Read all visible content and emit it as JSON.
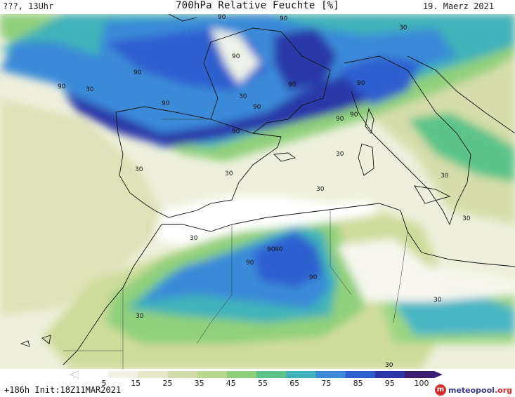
{
  "header": {
    "left": "???, 13Uhr",
    "title": "700hPa Relative Feuchte [%]",
    "date": "19. Maerz 2021"
  },
  "footer": {
    "init": "+186h  Init:18Z11MAR2021",
    "logo": "meteopool.org"
  },
  "colorbar": {
    "ticks": [
      "5",
      "15",
      "25",
      "35",
      "45",
      "55",
      "65",
      "75",
      "85",
      "95",
      "100"
    ],
    "colors": [
      "#ffffff",
      "#f1f1e6",
      "#e6e7c8",
      "#d2dcaa",
      "#b9d98e",
      "#8fd07c",
      "#5cc489",
      "#3fb2b9",
      "#3b8ad8",
      "#2d5fcf",
      "#2b37a8",
      "#3a1e72"
    ]
  },
  "labels": {
    "l90_1": "90",
    "l90_2": "90",
    "l90_3": "90",
    "l90_4": "90",
    "l90_5": "90",
    "l90_6": "90",
    "l90_7": "90",
    "l90_8": "90",
    "l90_9": "90",
    "l90_10": "90",
    "l90_11": "90",
    "l90_12": "90",
    "l90_13": "90",
    "l90_14": "90",
    "l90_15": "90",
    "l90_16": "90",
    "l30_1": "30",
    "l30_2": "30",
    "l30_3": "30",
    "l30_4": "30",
    "l30_5": "30",
    "l30_6": "30",
    "l30_7": "30",
    "l30_8": "30",
    "l30_9": "30",
    "l30_10": "30",
    "l30_11": "30",
    "l30_12": "30",
    "l30_13": "30"
  }
}
